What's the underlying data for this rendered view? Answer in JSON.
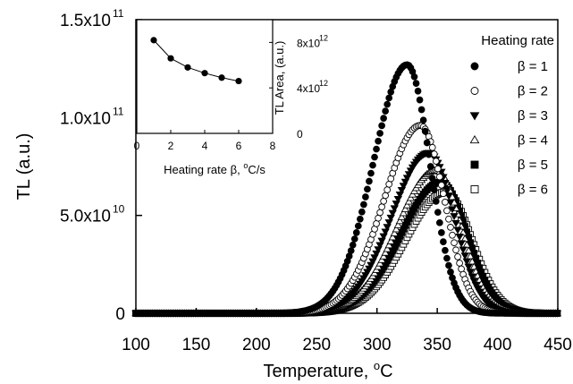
{
  "chart_data": [
    {
      "type": "scatter",
      "xlabel": "Temperature, °C",
      "ylabel": "TL (a.u.)",
      "xlim": [
        100,
        450
      ],
      "ylim": [
        0,
        150000000000
      ],
      "x_ticks": [
        "100",
        "150",
        "200",
        "250",
        "300",
        "350",
        "400",
        "450"
      ],
      "y_ticks": [
        "0",
        "5.0x10",
        "1.0x10",
        "1.5x10"
      ],
      "y_tick_values": [
        0,
        50000000000,
        100000000000,
        150000000000
      ],
      "y_tick_exponents": [
        "",
        "10",
        "11",
        "11"
      ],
      "legend_title": "Heating rate",
      "legend_position": "right",
      "grid": false,
      "series": [
        {
          "name": "β = 1",
          "marker": "filled-circle",
          "peak_temperature": 325,
          "peak_tl": 127000000000,
          "rise_width": 28,
          "fall_width": 19
        },
        {
          "name": "β = 2",
          "marker": "open-circle",
          "peak_temperature": 336,
          "peak_tl": 96000000000,
          "rise_width": 30,
          "fall_width": 20
        },
        {
          "name": "β = 3",
          "marker": "filled-triangle-down",
          "peak_temperature": 343,
          "peak_tl": 82000000000,
          "rise_width": 31,
          "fall_width": 21
        },
        {
          "name": "β = 4",
          "marker": "open-triangle-up",
          "peak_temperature": 349,
          "peak_tl": 73000000000,
          "rise_width": 32,
          "fall_width": 21
        },
        {
          "name": "β = 5",
          "marker": "filled-square",
          "peak_temperature": 353,
          "peak_tl": 67000000000,
          "rise_width": 33,
          "fall_width": 22
        },
        {
          "name": "β = 6",
          "marker": "open-square",
          "peak_temperature": 357,
          "peak_tl": 62000000000,
          "rise_width": 33,
          "fall_width": 22
        }
      ]
    },
    {
      "type": "line",
      "xlabel": "Heating rate β, °C/s",
      "ylabel": "TL Area, (a.u.)",
      "xlim": [
        0,
        8
      ],
      "ylim": [
        0,
        10000000000000
      ],
      "x_ticks": [
        "0",
        "2",
        "4",
        "6",
        "8"
      ],
      "y_ticks": [
        "0",
        "4x10",
        "8x10"
      ],
      "y_tick_values": [
        0,
        4000000000000,
        8000000000000
      ],
      "y_tick_exponents": [
        "",
        "12",
        "12"
      ],
      "y_axis_side": "right",
      "x": [
        1,
        2,
        3,
        4,
        5,
        6
      ],
      "values": [
        8200000000000,
        6600000000000,
        5800000000000,
        5300000000000,
        4900000000000,
        4600000000000
      ]
    }
  ]
}
